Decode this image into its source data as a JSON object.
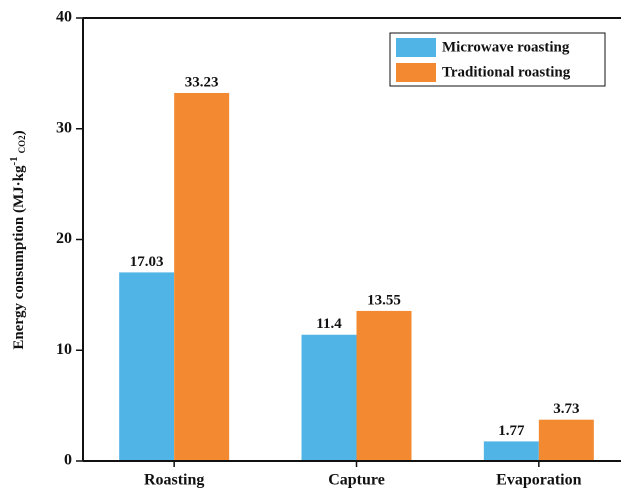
{
  "chart_data": {
    "type": "bar",
    "ylabel": {
      "text": "Energy consumption (MJ·kg",
      "sup": "-1",
      "sub": "CO2",
      "close": ")"
    },
    "categories": [
      "Roasting",
      "Capture",
      "Evaporation"
    ],
    "series": [
      {
        "name": "Microwave roasting",
        "color": "#51b4e6",
        "values": [
          17.03,
          11.4,
          1.77
        ]
      },
      {
        "name": "Traditional roasting",
        "color": "#f38a31",
        "values": [
          33.23,
          13.55,
          3.73
        ]
      }
    ],
    "ylim": [
      0,
      40
    ],
    "yticks": [
      0,
      10,
      20,
      30,
      40
    ],
    "legend": "top-right"
  }
}
